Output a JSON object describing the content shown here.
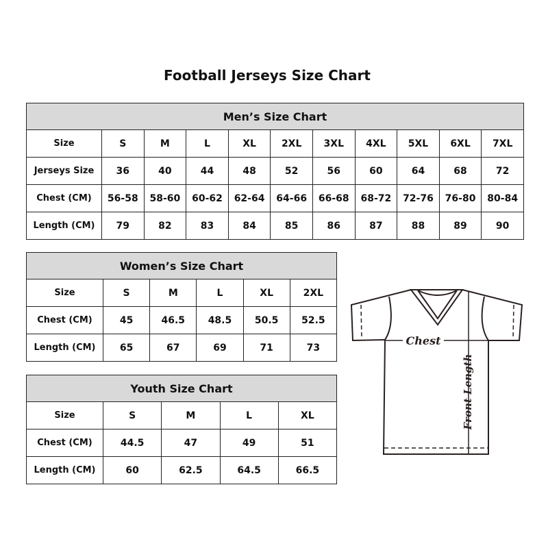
{
  "title": "Football Jerseys Size Chart",
  "mens": {
    "caption": "Men’s Size Chart",
    "rows": [
      [
        "Size",
        "S",
        "M",
        "L",
        "XL",
        "2XL",
        "3XL",
        "4XL",
        "5XL",
        "6XL",
        "7XL"
      ],
      [
        "Jerseys Size",
        "36",
        "40",
        "44",
        "48",
        "52",
        "56",
        "60",
        "64",
        "68",
        "72"
      ],
      [
        "Chest (CM)",
        "56-58",
        "58-60",
        "60-62",
        "62-64",
        "64-66",
        "66-68",
        "68-72",
        "72-76",
        "76-80",
        "80-84"
      ],
      [
        "Length (CM)",
        "79",
        "82",
        "83",
        "84",
        "85",
        "86",
        "87",
        "88",
        "89",
        "90"
      ]
    ]
  },
  "womens": {
    "caption": "Women’s Size Chart",
    "rows": [
      [
        "Size",
        "S",
        "M",
        "L",
        "XL",
        "2XL"
      ],
      [
        "Chest (CM)",
        "45",
        "46.5",
        "48.5",
        "50.5",
        "52.5"
      ],
      [
        "Length (CM)",
        "65",
        "67",
        "69",
        "71",
        "73"
      ]
    ]
  },
  "youth": {
    "caption": "Youth Size Chart",
    "rows": [
      [
        "Size",
        "S",
        "M",
        "L",
        "XL"
      ],
      [
        "Chest (CM)",
        "44.5",
        "47",
        "49",
        "51"
      ],
      [
        "Length (CM)",
        "60",
        "62.5",
        "64.5",
        "66.5"
      ]
    ]
  },
  "diagram": {
    "chest_label": "Chest",
    "length_label": "Front Length",
    "header_color": "#d9d9d9"
  }
}
